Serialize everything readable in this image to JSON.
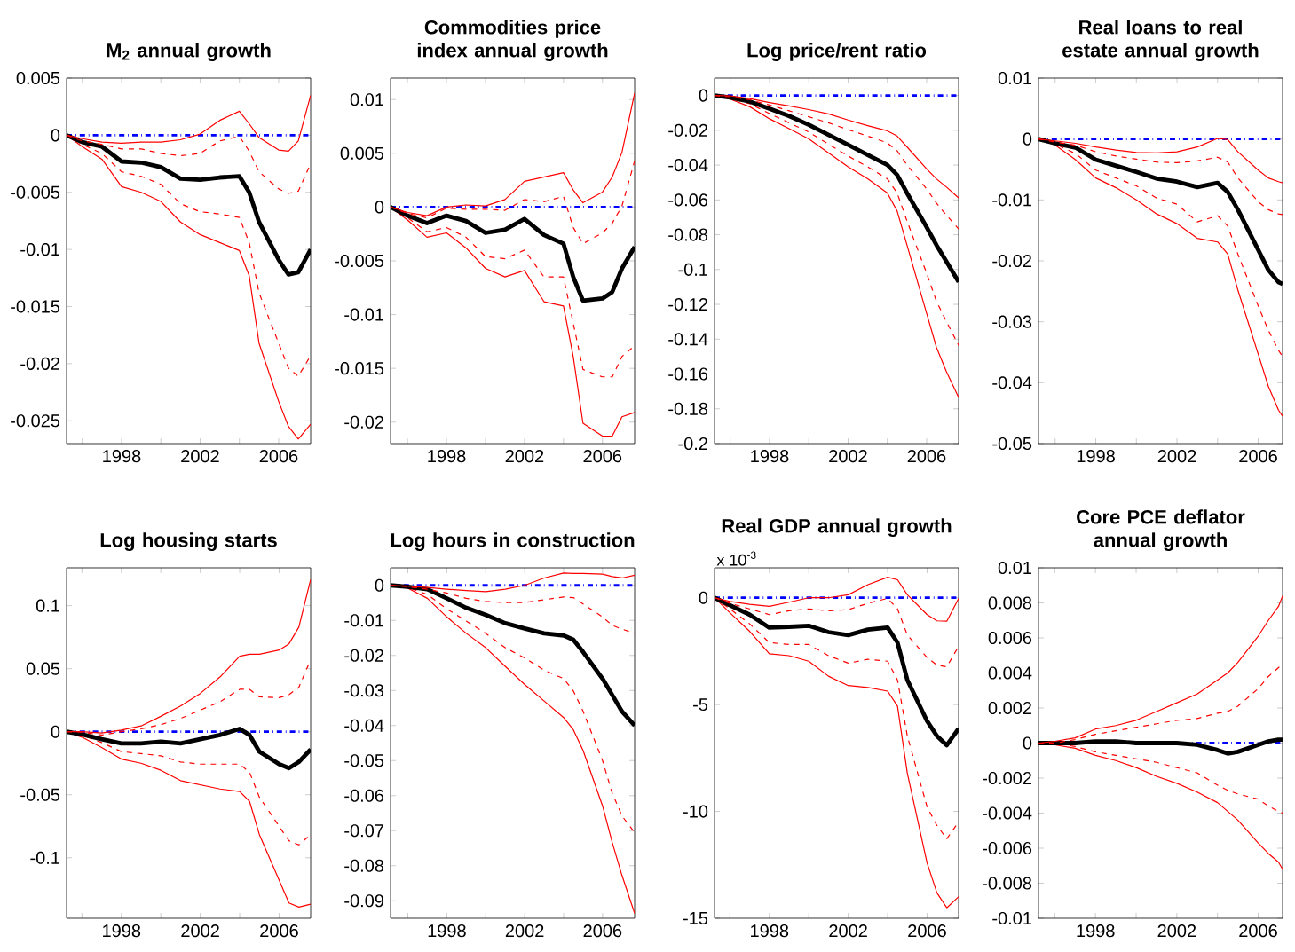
{
  "chart_data": [
    {
      "type": "line",
      "title": "M$_{2}$ annual growth",
      "x": [
        1995.2,
        1996,
        1997,
        1998,
        1999,
        2000,
        2001,
        2002,
        2003,
        2004,
        2004.5,
        2005,
        2006,
        2006.5,
        2007,
        2007.63
      ],
      "series": [
        {
          "color": "#ff0000",
          "line_style": "solid",
          "values": [
            0,
            -0.001,
            -0.0021,
            -0.0045,
            -0.005,
            -0.0058,
            -0.0076,
            -0.0087,
            -0.0094,
            -0.0101,
            -0.0123,
            -0.0182,
            -0.0233,
            -0.0255,
            -0.0266,
            -0.0253
          ]
        },
        {
          "color": "#ff0000",
          "line_style": "dashed",
          "values": [
            0,
            -0.0008,
            -0.0016,
            -0.0032,
            -0.0036,
            -0.0043,
            -0.006,
            -0.0067,
            -0.0069,
            -0.0072,
            -0.0094,
            -0.0138,
            -0.0182,
            -0.0204,
            -0.0211,
            -0.0193
          ]
        },
        {
          "color": "#000000",
          "line_style": "solid",
          "values": [
            0,
            -0.0006,
            -0.001,
            -0.0023,
            -0.0024,
            -0.0028,
            -0.0038,
            -0.0039,
            -0.0037,
            -0.0036,
            -0.005,
            -0.0076,
            -0.0109,
            -0.0122,
            -0.012,
            -0.01
          ]
        },
        {
          "color": "#ff0000",
          "line_style": "dashed",
          "values": [
            0,
            -0.0005,
            -0.0008,
            -0.0012,
            -0.0012,
            -0.0016,
            -0.0018,
            -0.0016,
            -0.0005,
            -0.0001,
            -0.0014,
            -0.0032,
            -0.0047,
            -0.0051,
            -0.0049,
            -0.0025
          ]
        },
        {
          "color": "#ff0000",
          "line_style": "solid",
          "values": [
            0,
            -0.0003,
            -0.0006,
            -0.0007,
            -0.0006,
            -0.0006,
            -0.0004,
            0.0001,
            0.0013,
            0.0021,
            0.001,
            -0.0002,
            -0.0013,
            -0.0014,
            -0.0005,
            0.0035
          ]
        }
      ],
      "xlim": [
        1995.2,
        2007.63
      ],
      "ylim": [
        -0.027,
        0.005
      ],
      "xticks": [
        {
          "value": 1996,
          "label": null
        },
        1998,
        {
          "value": 2000,
          "label": null
        },
        2002,
        {
          "value": 2004,
          "label": null
        },
        2006
      ],
      "yticks": [
        0.005,
        0,
        -0.005,
        -0.01,
        -0.015,
        -0.02,
        -0.025
      ],
      "ref_lines": [
        {
          "axis": "y",
          "value": 0,
          "color": "#0000ff",
          "line_style": "dashdot"
        }
      ]
    },
    {
      "type": "line",
      "title": "Commodities price index annual growth",
      "x": [
        1995.13,
        1996,
        1997,
        1998,
        1999,
        2000,
        2001,
        2002,
        2003,
        2004,
        2004.5,
        2005,
        2006,
        2006.5,
        2007,
        2007.65
      ],
      "series": [
        {
          "color": "#ff0000",
          "line_style": "solid",
          "values": [
            0,
            -0.0012,
            -0.0028,
            -0.0024,
            -0.0038,
            -0.0057,
            -0.0065,
            -0.0059,
            -0.0088,
            -0.0092,
            -0.0139,
            -0.0201,
            -0.0213,
            -0.0213,
            -0.0195,
            -0.0191
          ]
        },
        {
          "color": "#ff0000",
          "line_style": "dashed",
          "values": [
            0,
            -0.001,
            -0.0023,
            -0.0019,
            -0.0028,
            -0.0046,
            -0.0048,
            -0.004,
            -0.0065,
            -0.0065,
            -0.0108,
            -0.0151,
            -0.0158,
            -0.0158,
            -0.0139,
            -0.0129
          ]
        },
        {
          "color": "#000000",
          "line_style": "solid",
          "values": [
            0,
            -0.0008,
            -0.0015,
            -0.0008,
            -0.0013,
            -0.0024,
            -0.0021,
            -0.0011,
            -0.0026,
            -0.0034,
            -0.0065,
            -0.0087,
            -0.0085,
            -0.0079,
            -0.0057,
            -0.0037
          ]
        },
        {
          "color": "#ff0000",
          "line_style": "dashed",
          "values": [
            0,
            -0.0006,
            -0.001,
            -0.0001,
            -0.0002,
            -0.0002,
            -0.0003,
            0.0007,
            0.0005,
            0.001,
            -0.0019,
            -0.0034,
            -0.0024,
            -0.0015,
            0.0001,
            0.0043
          ]
        },
        {
          "color": "#ff0000",
          "line_style": "solid",
          "values": [
            0,
            -0.0005,
            -0.0008,
            0,
            0.0002,
            0.0001,
            0.0007,
            0.0024,
            0.0028,
            0.0032,
            0.0016,
            0.0004,
            0.0014,
            0.0028,
            0.0051,
            0.0106
          ]
        }
      ],
      "xlim": [
        1995.13,
        2007.65
      ],
      "ylim": [
        -0.022,
        0.012
      ],
      "xticks": [
        {
          "value": 1996,
          "label": null
        },
        1998,
        {
          "value": 2000,
          "label": null
        },
        2002,
        {
          "value": 2004,
          "label": null
        },
        2006
      ],
      "yticks": [
        0.01,
        0.005,
        0,
        -0.005,
        -0.01,
        -0.015,
        -0.02
      ],
      "ref_lines": [
        {
          "axis": "y",
          "value": 0,
          "color": "#0000ff",
          "line_style": "dashdot"
        }
      ]
    },
    {
      "type": "line",
      "title": "Log price/rent ratio",
      "x": [
        1995.2,
        1996,
        1997,
        1998,
        1999,
        2000,
        2001,
        2002,
        2003,
        2004,
        2004.5,
        2005,
        2006,
        2006.5,
        2007,
        2007.63
      ],
      "series": [
        {
          "color": "#ff0000",
          "line_style": "solid",
          "values": [
            0,
            -0.0021,
            -0.0065,
            -0.0134,
            -0.0191,
            -0.0249,
            -0.033,
            -0.041,
            -0.0479,
            -0.056,
            -0.0664,
            -0.0859,
            -0.1251,
            -0.1447,
            -0.1585,
            -0.1735
          ]
        },
        {
          "color": "#ff0000",
          "line_style": "dashed",
          "values": [
            0,
            -0.0016,
            -0.0048,
            -0.0104,
            -0.0157,
            -0.021,
            -0.0279,
            -0.0348,
            -0.041,
            -0.0479,
            -0.056,
            -0.0721,
            -0.1021,
            -0.1182,
            -0.1297,
            -0.1435
          ]
        },
        {
          "color": "#000000",
          "line_style": "solid",
          "values": [
            0,
            -0.0012,
            -0.0035,
            -0.0076,
            -0.0118,
            -0.0168,
            -0.0226,
            -0.0283,
            -0.0341,
            -0.0399,
            -0.0456,
            -0.056,
            -0.0756,
            -0.0859,
            -0.0952,
            -0.1071
          ]
        },
        {
          "color": "#ff0000",
          "line_style": "dashed",
          "values": [
            0,
            -0.0007,
            -0.0025,
            -0.0055,
            -0.0088,
            -0.0122,
            -0.0157,
            -0.0196,
            -0.0233,
            -0.0272,
            -0.0318,
            -0.0399,
            -0.0537,
            -0.0618,
            -0.0687,
            -0.0767
          ]
        },
        {
          "color": "#ff0000",
          "line_style": "solid",
          "values": [
            0,
            -0.0002,
            -0.0018,
            -0.0041,
            -0.006,
            -0.0081,
            -0.0106,
            -0.0141,
            -0.0173,
            -0.0203,
            -0.0233,
            -0.0295,
            -0.0422,
            -0.0479,
            -0.0525,
            -0.0588
          ]
        }
      ],
      "xlim": [
        1995.2,
        2007.63
      ],
      "ylim": [
        -0.2,
        0.01
      ],
      "xticks": [
        {
          "value": 1996,
          "label": null
        },
        1998,
        {
          "value": 2000,
          "label": null
        },
        2002,
        {
          "value": 2004,
          "label": null
        },
        2006
      ],
      "yticks": [
        0,
        -0.02,
        -0.04,
        -0.06,
        -0.08,
        -0.1,
        -0.12,
        -0.14,
        -0.16,
        -0.18,
        -0.2
      ],
      "ref_lines": [
        {
          "axis": "y",
          "value": 0,
          "color": "#0000ff",
          "line_style": "dashdot"
        }
      ]
    },
    {
      "type": "line",
      "title": "Real loans to real estate annual growth",
      "x": [
        1995.18,
        1996,
        1997,
        1998,
        1999,
        2000,
        2001,
        2002,
        2003,
        2004,
        2004.5,
        2005,
        2006,
        2006.5,
        2007,
        2007.2
      ],
      "series": [
        {
          "color": "#ff0000",
          "line_style": "solid",
          "values": [
            0,
            -0.001,
            -0.0034,
            -0.0064,
            -0.008,
            -0.01,
            -0.0123,
            -0.0139,
            -0.0163,
            -0.0169,
            -0.0189,
            -0.0248,
            -0.0353,
            -0.0406,
            -0.0445,
            -0.0455
          ]
        },
        {
          "color": "#ff0000",
          "line_style": "dashed",
          "values": [
            0,
            -0.0008,
            -0.0024,
            -0.0051,
            -0.0064,
            -0.0077,
            -0.0097,
            -0.0107,
            -0.0136,
            -0.0126,
            -0.0143,
            -0.0189,
            -0.0274,
            -0.0314,
            -0.0347,
            -0.0357
          ]
        },
        {
          "color": "#000000",
          "line_style": "solid",
          "values": [
            0,
            -0.0007,
            -0.0014,
            -0.0034,
            -0.0044,
            -0.0054,
            -0.0065,
            -0.007,
            -0.0079,
            -0.0072,
            -0.0087,
            -0.0116,
            -0.0182,
            -0.0215,
            -0.0235,
            -0.0238
          ]
        },
        {
          "color": "#ff0000",
          "line_style": "dashed",
          "values": [
            0,
            -0.0005,
            -0.001,
            -0.0021,
            -0.0028,
            -0.0033,
            -0.0038,
            -0.0039,
            -0.0036,
            -0.003,
            -0.0038,
            -0.0064,
            -0.0103,
            -0.0116,
            -0.0123,
            -0.0124
          ]
        },
        {
          "color": "#ff0000",
          "line_style": "solid",
          "values": [
            0,
            -0.0003,
            -0.0007,
            -0.0013,
            -0.0018,
            -0.0022,
            -0.0023,
            -0.0021,
            -0.0013,
            0.0001,
            -0.0001,
            -0.0021,
            -0.0051,
            -0.0064,
            -0.007,
            -0.0072
          ]
        }
      ],
      "xlim": [
        1995.18,
        2007.2
      ],
      "ylim": [
        -0.05,
        0.01
      ],
      "xticks": [
        {
          "value": 1996,
          "label": null
        },
        1998,
        {
          "value": 2000,
          "label": null
        },
        2002,
        {
          "value": 2004,
          "label": null
        },
        2006
      ],
      "yticks": [
        0.01,
        0,
        -0.01,
        -0.02,
        -0.03,
        -0.04,
        -0.05
      ],
      "ref_lines": [
        {
          "axis": "y",
          "value": 0,
          "color": "#0000ff",
          "line_style": "dashdot"
        }
      ]
    },
    {
      "type": "line",
      "title": "Log housing starts",
      "x": [
        1995.22,
        1996,
        1997,
        1998,
        1999,
        2000,
        2001,
        2002,
        2003,
        2004,
        2004.5,
        2005,
        2006,
        2006.5,
        2007,
        2007.6
      ],
      "series": [
        {
          "color": "#ff0000",
          "line_style": "solid",
          "values": [
            0,
            -0.0043,
            -0.0125,
            -0.0217,
            -0.025,
            -0.0306,
            -0.0388,
            -0.0421,
            -0.0454,
            -0.0474,
            -0.0553,
            -0.0816,
            -0.1178,
            -0.1359,
            -0.1391,
            -0.1368
          ]
        },
        {
          "color": "#ff0000",
          "line_style": "dashed",
          "values": [
            0,
            -0.0026,
            -0.0086,
            -0.0158,
            -0.0174,
            -0.0191,
            -0.024,
            -0.0257,
            -0.0257,
            -0.0257,
            -0.0322,
            -0.052,
            -0.075,
            -0.0865,
            -0.0898,
            -0.0816
          ]
        },
        {
          "color": "#000000",
          "line_style": "solid",
          "values": [
            0,
            -0.002,
            -0.0059,
            -0.0092,
            -0.0092,
            -0.0079,
            -0.0092,
            -0.0059,
            -0.0026,
            0.0023,
            -0.0026,
            -0.0158,
            -0.0257,
            -0.0289,
            -0.024,
            -0.0141
          ]
        },
        {
          "color": "#ff0000",
          "line_style": "dashed",
          "values": [
            0,
            -0.0003,
            -0.0026,
            0,
            0.0023,
            0.0056,
            0.0105,
            0.0171,
            0.0237,
            0.0336,
            0.0336,
            0.0276,
            0.027,
            0.0293,
            0.0352,
            0.0572
          ]
        },
        {
          "color": "#ff0000",
          "line_style": "solid",
          "values": [
            0,
            0,
            -0.001,
            0.0013,
            0.0046,
            0.0122,
            0.0204,
            0.0303,
            0.0434,
            0.0599,
            0.0615,
            0.0615,
            0.0648,
            0.0697,
            0.0829,
            0.1207
          ]
        }
      ],
      "xlim": [
        1995.22,
        2007.6
      ],
      "ylim": [
        -0.148,
        0.13
      ],
      "xticks": [
        {
          "value": 1996,
          "label": null
        },
        1998,
        {
          "value": 2000,
          "label": null
        },
        2002,
        {
          "value": 2004,
          "label": null
        },
        2006
      ],
      "yticks": [
        0.1,
        0.05,
        0,
        -0.05,
        -0.1
      ],
      "ref_lines": [
        {
          "axis": "y",
          "value": 0,
          "color": "#0000ff",
          "line_style": "dashdot"
        }
      ]
    },
    {
      "type": "line",
      "title": "Log hours in construction",
      "x": [
        1995.11,
        1996,
        1997,
        1998,
        1999,
        2000,
        2001,
        2002,
        2003,
        2004,
        2004.5,
        2005,
        2006,
        2006.5,
        2007,
        2007.65
      ],
      "series": [
        {
          "color": "#ff0000",
          "line_style": "solid",
          "values": [
            0,
            -0.0008,
            -0.0037,
            -0.009,
            -0.0137,
            -0.0178,
            -0.0231,
            -0.0283,
            -0.033,
            -0.0377,
            -0.0412,
            -0.0471,
            -0.0629,
            -0.0734,
            -0.0828,
            -0.0936
          ]
        },
        {
          "color": "#ff0000",
          "line_style": "dashed",
          "values": [
            0,
            -0.0006,
            -0.0026,
            -0.0067,
            -0.0102,
            -0.0137,
            -0.0178,
            -0.0207,
            -0.0242,
            -0.0266,
            -0.0301,
            -0.0359,
            -0.05,
            -0.0593,
            -0.0658,
            -0.0705
          ]
        },
        {
          "color": "#000000",
          "line_style": "solid",
          "values": [
            0,
            -0.0004,
            -0.0011,
            -0.0037,
            -0.0064,
            -0.0084,
            -0.0108,
            -0.0123,
            -0.0137,
            -0.0143,
            -0.0155,
            -0.019,
            -0.0266,
            -0.0313,
            -0.036,
            -0.04
          ]
        },
        {
          "color": "#ff0000",
          "line_style": "dashed",
          "values": [
            0,
            -0.0004,
            -0.0011,
            -0.0022,
            -0.0037,
            -0.0046,
            -0.0049,
            -0.0049,
            -0.0041,
            -0.0033,
            -0.0035,
            -0.0053,
            -0.009,
            -0.0114,
            -0.0125,
            -0.0137
          ]
        },
        {
          "color": "#ff0000",
          "line_style": "solid",
          "values": [
            0,
            -0.0002,
            -0.0006,
            -0.0011,
            -0.0015,
            -0.0018,
            -0.0011,
            0,
            0.0021,
            0.0035,
            0.0034,
            0.0034,
            0.0032,
            0.0025,
            0.0021,
            0.0029
          ]
        }
      ],
      "xlim": [
        1995.11,
        2007.65
      ],
      "ylim": [
        -0.095,
        0.005
      ],
      "xticks": [
        {
          "value": 1996,
          "label": null
        },
        1998,
        {
          "value": 2000,
          "label": null
        },
        2002,
        {
          "value": 2004,
          "label": null
        },
        2006
      ],
      "yticks": [
        0,
        -0.01,
        -0.02,
        -0.03,
        -0.04,
        -0.05,
        -0.06,
        -0.07,
        -0.08,
        -0.09
      ],
      "ref_lines": [
        {
          "axis": "y",
          "value": 0,
          "color": "#0000ff",
          "line_style": "dashdot"
        }
      ]
    },
    {
      "type": "line",
      "title": "Real GDP annual growth",
      "annotations": [
        "x 10$^{-3}$"
      ],
      "x": [
        1995.22,
        1996,
        1997,
        1998,
        1999,
        2000,
        2001,
        2002,
        2003,
        2004,
        2004.5,
        2005,
        2006,
        2006.5,
        2007,
        2007.6
      ],
      "series": [
        {
          "color": "#ff0000",
          "line_style": "solid",
          "values": [
            0,
            -0.7,
            -1.57,
            -2.62,
            -2.71,
            -2.97,
            -3.67,
            -4.11,
            -4.2,
            -4.37,
            -5.07,
            -8.22,
            -12.41,
            -13.81,
            -14.51,
            -13.99
          ]
        },
        {
          "color": "#ff0000",
          "line_style": "dashed",
          "values": [
            0,
            -0.52,
            -1.22,
            -2.1,
            -2.19,
            -2.19,
            -2.71,
            -3.06,
            -2.88,
            -2.97,
            -3.85,
            -6.47,
            -9.79,
            -10.66,
            -11.28,
            -10.49
          ]
        },
        {
          "color": "#000000",
          "line_style": "solid",
          "values": [
            0,
            -0.35,
            -0.79,
            -1.4,
            -1.36,
            -1.31,
            -1.61,
            -1.75,
            -1.49,
            -1.4,
            -2.1,
            -3.85,
            -5.77,
            -6.47,
            -6.9,
            -6.12
          ]
        },
        {
          "color": "#ff0000",
          "line_style": "dashed",
          "values": [
            0,
            -0.26,
            -0.52,
            -0.79,
            -0.61,
            -0.52,
            -0.61,
            -0.56,
            -0.26,
            -0.03,
            -0.52,
            -1.75,
            -2.8,
            -3.15,
            -3.23,
            -2.27
          ]
        },
        {
          "color": "#ff0000",
          "line_style": "solid",
          "values": [
            0,
            -0.17,
            -0.31,
            -0.4,
            -0.21,
            0,
            0,
            0.14,
            0.61,
            0.96,
            0.84,
            0.14,
            -0.79,
            -1.08,
            -1.1,
            -0.03
          ]
        }
      ],
      "xlim": [
        1995.22,
        2007.6
      ],
      "ylim": [
        -15,
        1.4
      ],
      "xticks": [
        {
          "value": 1996,
          "label": null
        },
        1998,
        {
          "value": 2000,
          "label": null
        },
        2002,
        {
          "value": 2004,
          "label": null
        },
        2006
      ],
      "yticks": [
        0,
        -5,
        -10,
        -15
      ],
      "ref_lines": [
        {
          "axis": "y",
          "value": 0,
          "color": "#0000ff",
          "line_style": "dashdot"
        }
      ]
    },
    {
      "type": "line",
      "title": "Core PCE deflator annual growth",
      "x": [
        1995.2,
        1996,
        1997,
        1998,
        1999,
        2000,
        2001,
        2002,
        2003,
        2004,
        2004.5,
        2005,
        2006,
        2006.5,
        2007,
        2007.2
      ],
      "series": [
        {
          "color": "#ff0000",
          "line_style": "solid",
          "values": [
            0,
            -0.0001,
            -0.0003,
            -0.0007,
            -0.001,
            -0.0014,
            -0.0019,
            -0.0023,
            -0.0028,
            -0.0034,
            -0.0039,
            -0.0044,
            -0.0057,
            -0.0063,
            -0.0068,
            -0.0072
          ]
        },
        {
          "color": "#ff0000",
          "line_style": "dashed",
          "values": [
            0,
            0,
            -0.0002,
            -0.0005,
            -0.0007,
            -0.0009,
            -0.0011,
            -0.0014,
            -0.0017,
            -0.0024,
            -0.0027,
            -0.0029,
            -0.0032,
            -0.0036,
            -0.0039,
            -0.004
          ]
        },
        {
          "color": "#000000",
          "line_style": "solid",
          "values": [
            0,
            0,
            0,
            0.0001,
            0.0001,
            0,
            0,
            0,
            -0.0001,
            -0.0004,
            -0.0006,
            -0.0005,
            -0.0001,
            0.0001,
            0.0002,
            0.0002
          ]
        },
        {
          "color": "#ff0000",
          "line_style": "dashed",
          "values": [
            0,
            0,
            0.0002,
            0.0005,
            0.0007,
            0.0009,
            0.0011,
            0.0013,
            0.0014,
            0.0017,
            0.0018,
            0.0021,
            0.0031,
            0.0038,
            0.0043,
            0.0045
          ]
        },
        {
          "color": "#ff0000",
          "line_style": "solid",
          "values": [
            0,
            0.0001,
            0.0003,
            0.0008,
            0.001,
            0.0013,
            0.0018,
            0.0023,
            0.0028,
            0.0036,
            0.004,
            0.0046,
            0.0061,
            0.007,
            0.0078,
            0.0084
          ]
        }
      ],
      "xlim": [
        1995.2,
        2007.2
      ],
      "ylim": [
        -0.01,
        0.01
      ],
      "xticks": [
        {
          "value": 1996,
          "label": null
        },
        1998,
        {
          "value": 2000,
          "label": null
        },
        2002,
        {
          "value": 2004,
          "label": null
        },
        2006
      ],
      "yticks": [
        0.01,
        0.008,
        0.006,
        0.004,
        0.002,
        0,
        -0.002,
        -0.004,
        -0.006,
        -0.008,
        -0.01
      ],
      "ref_lines": [
        {
          "axis": "y",
          "value": 0,
          "color": "#0000ff",
          "line_style": "dashdot"
        }
      ]
    }
  ]
}
